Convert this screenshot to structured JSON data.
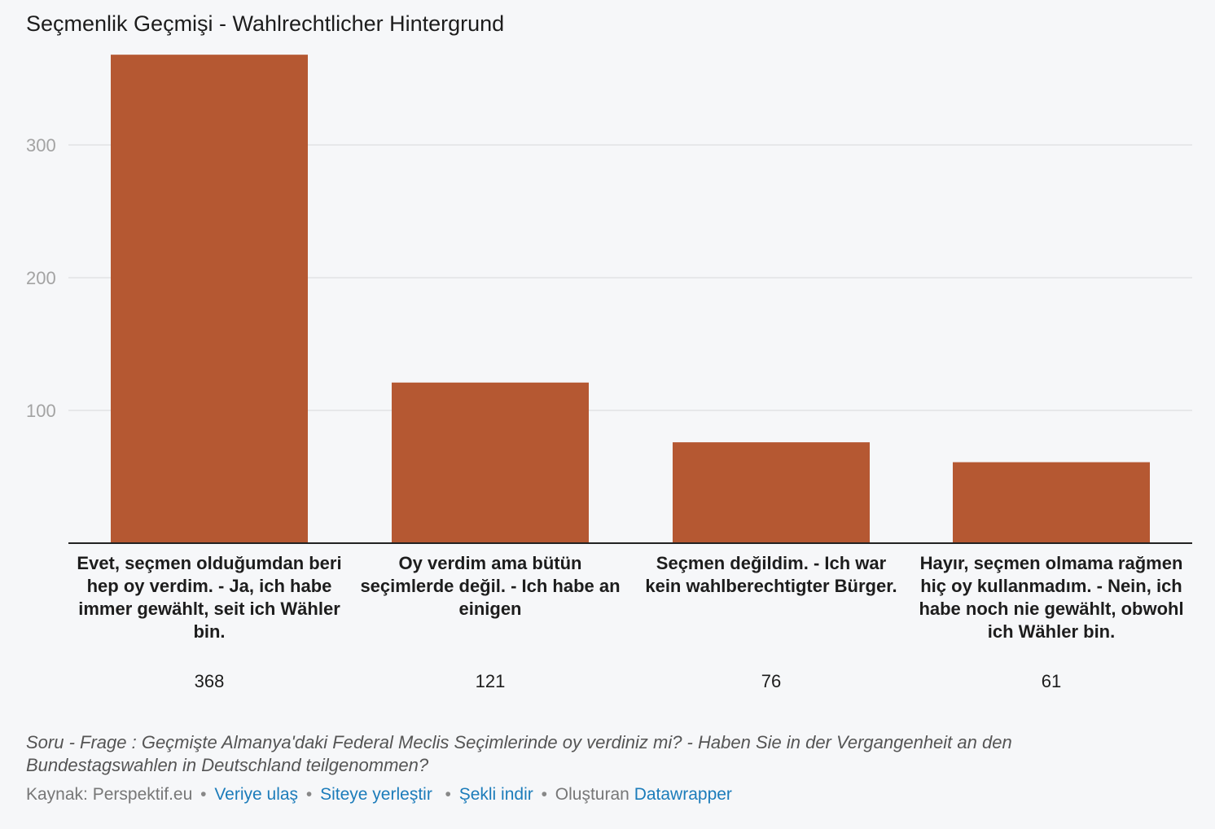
{
  "chart_data": {
    "type": "bar",
    "title": "Seçmenlik Geçmişi - Wahlrechtlicher Hintergrund",
    "categories": [
      "Evet, seçmen olduğumdan beri hep oy verdim. - Ja, ich habe immer gewählt, seit ich Wähler bin.",
      "Oy verdim ama bütün seçimlerde değil. - Ich habe an einigen",
      "Seçmen değildim. - Ich war kein wahlberechtigter Bürger.",
      "Hayır, seçmen olmama rağmen hiç oy kullanmadım. - Nein, ich habe noch nie gewählt, obwohl ich Wähler bin."
    ],
    "values": [
      368,
      121,
      76,
      61
    ],
    "value_labels": [
      "368",
      "121",
      "76",
      "61"
    ],
    "yticks": [
      100,
      200,
      300
    ],
    "ytick_labels": [
      "100",
      "200",
      "300"
    ],
    "ylim": [
      0,
      375
    ],
    "grid": true,
    "bar_color": "#b55832"
  },
  "notes": "Soru - Frage : Geçmişte Almanya'daki Federal Meclis Seçimlerinde oy verdiniz mi? - Haben Sie in der Vergangenheit an den Bundestagswahlen in Deutschland teilgenommen?",
  "footer": {
    "source": "Kaynak: Perspektif.eu",
    "get_data": "Veriye ulaş",
    "embed": "Siteye yerleştir",
    "download": "Şekli indir",
    "created_with": "Oluşturan",
    "tool": "Datawrapper"
  }
}
